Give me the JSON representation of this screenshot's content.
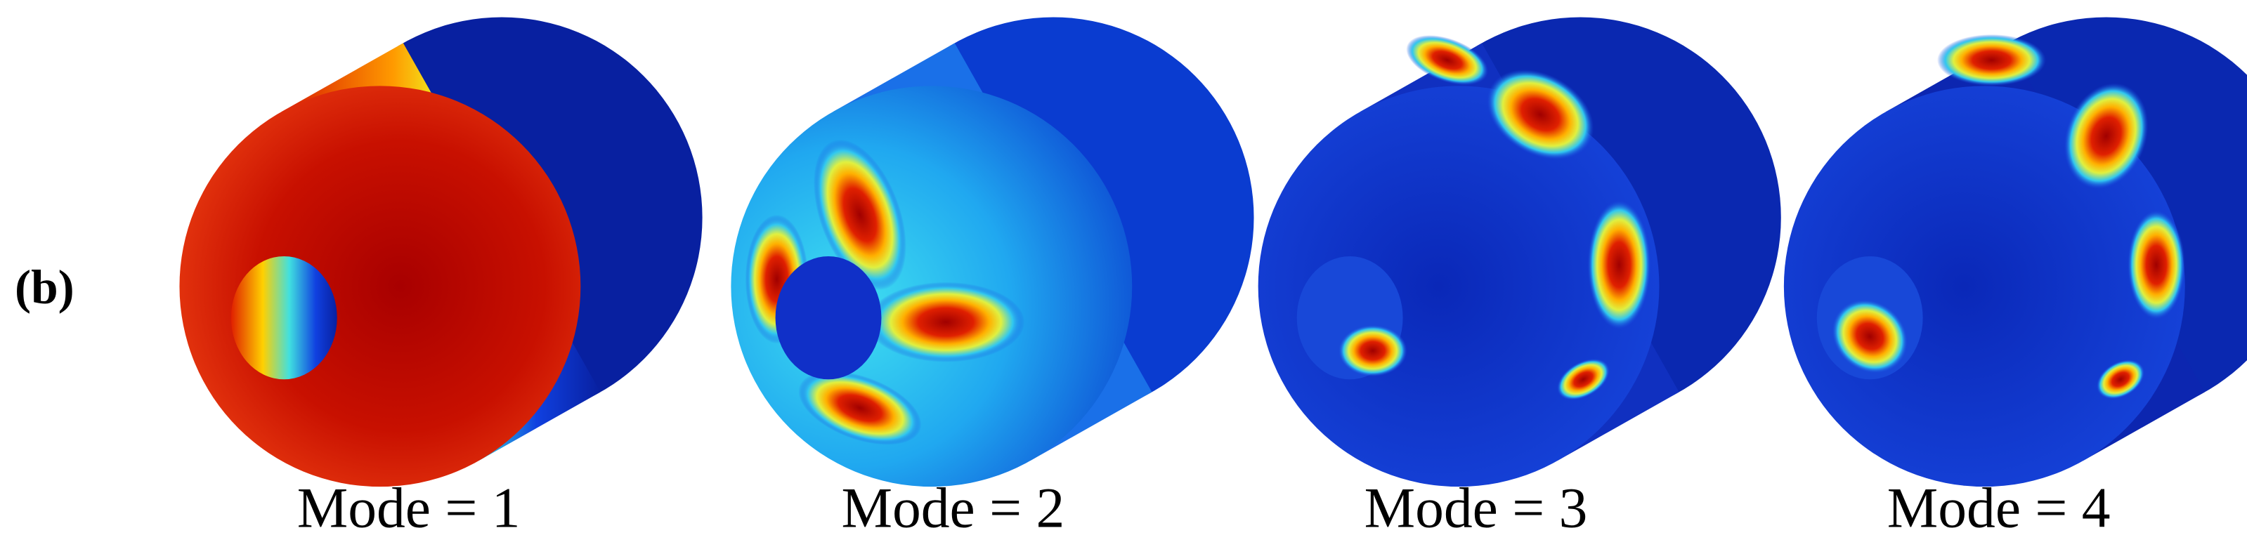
{
  "panel_label": "(b)",
  "captions": [
    "Mode = 1",
    "Mode = 2",
    "Mode = 3",
    "Mode = 4"
  ]
}
